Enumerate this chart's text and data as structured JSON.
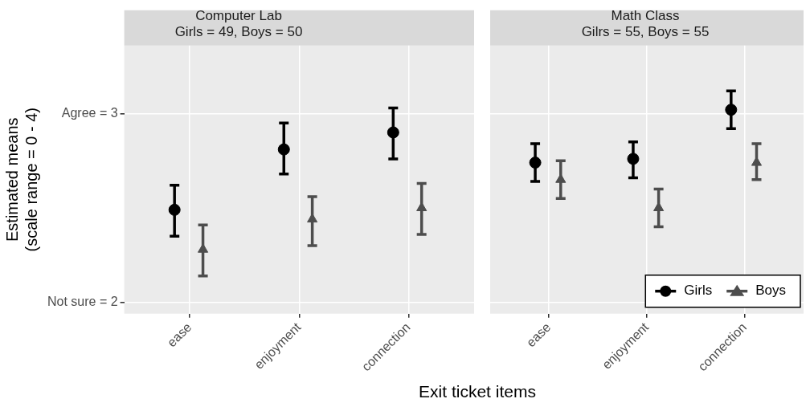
{
  "chart_data": [
    {
      "type": "scatter",
      "title": "Computer Lab\nGirls = 49, Boys = 50",
      "xlabel": "Exit ticket items",
      "ylabel": "Estimated means\n(scale range = 0 - 4)",
      "categories": [
        "ease",
        "enjoyment",
        "connection"
      ],
      "ylim": [
        1.94,
        3.36
      ],
      "yticks": [
        {
          "value": 2,
          "label": "Not sure = 2"
        },
        {
          "value": 3,
          "label": "Agree = 3"
        }
      ],
      "grid": true,
      "legend": false,
      "series": [
        {
          "color": "#000000",
          "marker": "circle",
          "values": [
            2.49,
            2.81,
            2.9
          ],
          "errors": [
            [
              2.35,
              2.62
            ],
            [
              2.68,
              2.95
            ],
            [
              2.76,
              3.03
            ]
          ]
        },
        {
          "color": "#4d4d4d",
          "marker": "triangle",
          "values": [
            2.28,
            2.44,
            2.5
          ],
          "errors": [
            [
              2.14,
              2.41
            ],
            [
              2.3,
              2.56
            ],
            [
              2.36,
              2.63
            ]
          ]
        }
      ]
    },
    {
      "type": "scatter",
      "title": "Math Class\nGilrs = 55, Boys = 55",
      "categories": [
        "ease",
        "enjoyment",
        "connection"
      ],
      "ylim": [
        1.94,
        3.36
      ],
      "yticks": [
        2,
        3
      ],
      "tick_labels": "x",
      "grid": true,
      "legend": "bottom right",
      "series": [
        {
          "name": "Girls",
          "color": "#000000",
          "marker": "circle",
          "values": [
            2.74,
            2.76,
            3.02
          ],
          "errors": [
            [
              2.64,
              2.84
            ],
            [
              2.66,
              2.85
            ],
            [
              2.92,
              3.12
            ]
          ]
        },
        {
          "name": "Boys",
          "color": "#4d4d4d",
          "marker": "triangle",
          "values": [
            2.65,
            2.5,
            2.74
          ],
          "errors": [
            [
              2.55,
              2.75
            ],
            [
              2.4,
              2.6
            ],
            [
              2.65,
              2.84
            ]
          ]
        }
      ]
    }
  ]
}
